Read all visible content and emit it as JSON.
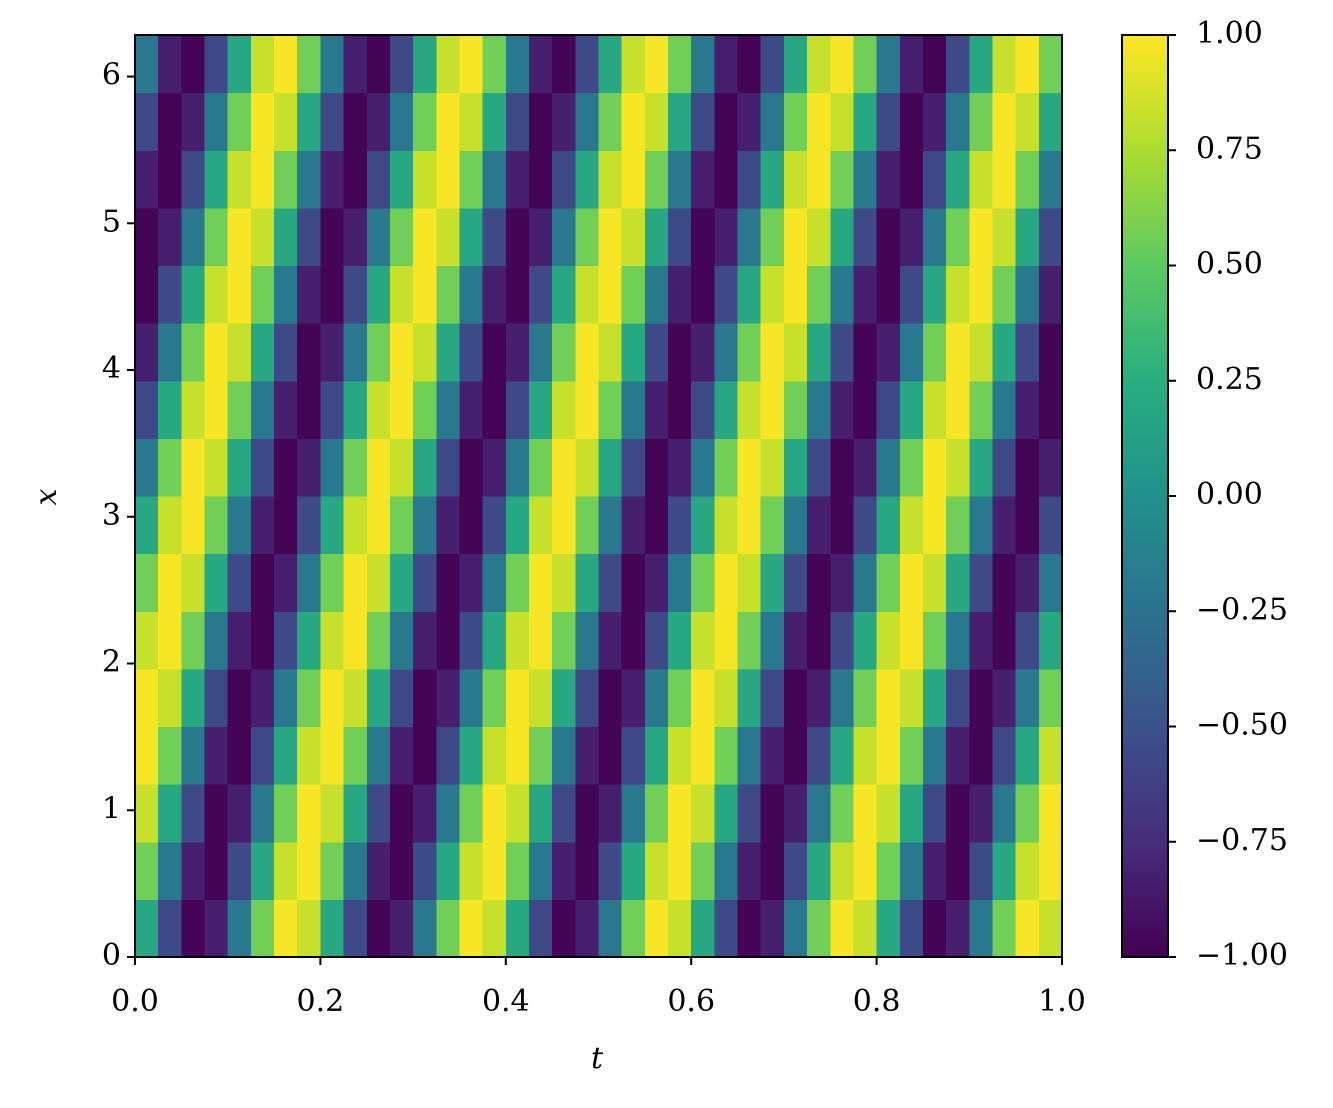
{
  "chart_data": {
    "type": "heatmap",
    "xlabel": "t",
    "ylabel": "x",
    "xlim": [
      0,
      1
    ],
    "ylim": [
      0,
      6.2832
    ],
    "xticks": [
      {
        "value": 0,
        "label": "0.0"
      },
      0.2,
      0.4,
      0.6,
      0.8,
      {
        "value": 1,
        "label": "1.0"
      }
    ],
    "yticks": [
      0,
      1,
      2,
      3,
      4,
      5,
      6
    ],
    "colormap": "viridis",
    "clim": [
      -1,
      1
    ],
    "cticks": [
      {
        "value": -1,
        "label": "−1.00"
      },
      {
        "value": -0.75,
        "label": "−0.75"
      },
      {
        "value": -0.5,
        "label": "−0.50"
      },
      {
        "value": -0.25,
        "label": "−0.25"
      },
      {
        "value": 0,
        "label": "0.00"
      },
      {
        "value": 0.25,
        "label": "0.25"
      },
      {
        "value": 0.5,
        "label": "0.50"
      },
      {
        "value": 0.75,
        "label": "0.75"
      },
      {
        "value": 1,
        "label": "1.00"
      }
    ],
    "z": [
      [
        0.2,
        -0.56,
        -0.98,
        -0.83,
        -0.2,
        0.56,
        0.98,
        0.83,
        0.2,
        -0.56,
        -0.98,
        -0.83,
        -0.2,
        0.56,
        0.98,
        0.83,
        0.2,
        -0.56,
        -0.98,
        -0.83,
        -0.2,
        0.56,
        0.98,
        0.83,
        0.2,
        -0.56,
        -0.98,
        -0.83,
        -0.2,
        0.56,
        0.98,
        0.83,
        0.2,
        -0.56,
        -0.98,
        -0.83,
        -0.2,
        0.56,
        0.98,
        0.83
      ],
      [
        0.56,
        -0.2,
        -0.83,
        -0.98,
        -0.56,
        0.2,
        0.83,
        0.98,
        0.56,
        -0.2,
        -0.83,
        -0.98,
        -0.56,
        0.2,
        0.83,
        0.98,
        0.56,
        -0.2,
        -0.83,
        -0.98,
        -0.56,
        0.2,
        0.83,
        0.98,
        0.56,
        -0.2,
        -0.83,
        -0.98,
        -0.56,
        0.2,
        0.83,
        0.98,
        0.56,
        -0.2,
        -0.83,
        -0.98,
        -0.56,
        0.2,
        0.83,
        0.98
      ],
      [
        0.83,
        0.2,
        -0.56,
        -0.98,
        -0.83,
        -0.2,
        0.56,
        0.98,
        0.83,
        0.2,
        -0.56,
        -0.98,
        -0.83,
        -0.2,
        0.56,
        0.98,
        0.83,
        0.2,
        -0.56,
        -0.98,
        -0.83,
        -0.2,
        0.56,
        0.98,
        0.83,
        0.2,
        -0.56,
        -0.98,
        -0.83,
        -0.2,
        0.56,
        0.98,
        0.83,
        0.2,
        -0.56,
        -0.98,
        -0.83,
        -0.2,
        0.56,
        0.98
      ],
      [
        0.98,
        0.56,
        -0.2,
        -0.83,
        -0.98,
        -0.56,
        0.2,
        0.83,
        0.98,
        0.56,
        -0.2,
        -0.83,
        -0.98,
        -0.56,
        0.2,
        0.83,
        0.98,
        0.56,
        -0.2,
        -0.83,
        -0.98,
        -0.56,
        0.2,
        0.83,
        0.98,
        0.56,
        -0.2,
        -0.83,
        -0.98,
        -0.56,
        0.2,
        0.83,
        0.98,
        0.56,
        -0.2,
        -0.83,
        -0.98,
        -0.56,
        0.2,
        0.83
      ],
      [
        0.98,
        0.83,
        0.2,
        -0.56,
        -0.98,
        -0.83,
        -0.2,
        0.56,
        0.98,
        0.83,
        0.2,
        -0.56,
        -0.98,
        -0.83,
        -0.2,
        0.56,
        0.98,
        0.83,
        0.2,
        -0.56,
        -0.98,
        -0.83,
        -0.2,
        0.56,
        0.98,
        0.83,
        0.2,
        -0.56,
        -0.98,
        -0.83,
        -0.2,
        0.56,
        0.98,
        0.83,
        0.2,
        -0.56,
        -0.98,
        -0.83,
        -0.2,
        0.56
      ],
      [
        0.83,
        0.98,
        0.56,
        -0.2,
        -0.83,
        -0.98,
        -0.56,
        0.2,
        0.83,
        0.98,
        0.56,
        -0.2,
        -0.83,
        -0.98,
        -0.56,
        0.2,
        0.83,
        0.98,
        0.56,
        -0.2,
        -0.83,
        -0.98,
        -0.56,
        0.2,
        0.83,
        0.98,
        0.56,
        -0.2,
        -0.83,
        -0.98,
        -0.56,
        0.2,
        0.83,
        0.98,
        0.56,
        -0.2,
        -0.83,
        -0.98,
        -0.56,
        0.2
      ],
      [
        0.56,
        0.98,
        0.83,
        0.2,
        -0.56,
        -0.98,
        -0.83,
        -0.2,
        0.56,
        0.98,
        0.83,
        0.2,
        -0.56,
        -0.98,
        -0.83,
        -0.2,
        0.56,
        0.98,
        0.83,
        0.2,
        -0.56,
        -0.98,
        -0.83,
        -0.2,
        0.56,
        0.98,
        0.83,
        0.2,
        -0.56,
        -0.98,
        -0.83,
        -0.2,
        0.56,
        0.98,
        0.83,
        0.2,
        -0.56,
        -0.98,
        -0.83,
        -0.2
      ],
      [
        0.2,
        0.83,
        0.98,
        0.56,
        -0.2,
        -0.83,
        -0.98,
        -0.56,
        0.2,
        0.83,
        0.98,
        0.56,
        -0.2,
        -0.83,
        -0.98,
        -0.56,
        0.2,
        0.83,
        0.98,
        0.56,
        -0.2,
        -0.83,
        -0.98,
        -0.56,
        0.2,
        0.83,
        0.98,
        0.56,
        -0.2,
        -0.83,
        -0.98,
        -0.56,
        0.2,
        0.83,
        0.98,
        0.56,
        -0.2,
        -0.83,
        -0.98,
        -0.56
      ],
      [
        -0.2,
        0.56,
        0.98,
        0.83,
        0.2,
        -0.56,
        -0.98,
        -0.83,
        -0.2,
        0.56,
        0.98,
        0.83,
        0.2,
        -0.56,
        -0.98,
        -0.83,
        -0.2,
        0.56,
        0.98,
        0.83,
        0.2,
        -0.56,
        -0.98,
        -0.83,
        -0.2,
        0.56,
        0.98,
        0.83,
        0.2,
        -0.56,
        -0.98,
        -0.83,
        -0.2,
        0.56,
        0.98,
        0.83,
        0.2,
        -0.56,
        -0.98,
        -0.83
      ],
      [
        -0.56,
        0.2,
        0.83,
        0.98,
        0.56,
        -0.2,
        -0.83,
        -0.98,
        -0.56,
        0.2,
        0.83,
        0.98,
        0.56,
        -0.2,
        -0.83,
        -0.98,
        -0.56,
        0.2,
        0.83,
        0.98,
        0.56,
        -0.2,
        -0.83,
        -0.98,
        -0.56,
        0.2,
        0.83,
        0.98,
        0.56,
        -0.2,
        -0.83,
        -0.98,
        -0.56,
        0.2,
        0.83,
        0.98,
        0.56,
        -0.2,
        -0.83,
        -0.98
      ],
      [
        -0.83,
        -0.2,
        0.56,
        0.98,
        0.83,
        0.2,
        -0.56,
        -0.98,
        -0.83,
        -0.2,
        0.56,
        0.98,
        0.83,
        0.2,
        -0.56,
        -0.98,
        -0.83,
        -0.2,
        0.56,
        0.98,
        0.83,
        0.2,
        -0.56,
        -0.98,
        -0.83,
        -0.2,
        0.56,
        0.98,
        0.83,
        0.2,
        -0.56,
        -0.98,
        -0.83,
        -0.2,
        0.56,
        0.98,
        0.83,
        0.2,
        -0.56,
        -0.98
      ],
      [
        -0.98,
        -0.56,
        0.2,
        0.83,
        0.98,
        0.56,
        -0.2,
        -0.83,
        -0.98,
        -0.56,
        0.2,
        0.83,
        0.98,
        0.56,
        -0.2,
        -0.83,
        -0.98,
        -0.56,
        0.2,
        0.83,
        0.98,
        0.56,
        -0.2,
        -0.83,
        -0.98,
        -0.56,
        0.2,
        0.83,
        0.98,
        0.56,
        -0.2,
        -0.83,
        -0.98,
        -0.56,
        0.2,
        0.83,
        0.98,
        0.56,
        -0.2,
        -0.83
      ],
      [
        -0.98,
        -0.83,
        -0.2,
        0.56,
        0.98,
        0.83,
        0.2,
        -0.56,
        -0.98,
        -0.83,
        -0.2,
        0.56,
        0.98,
        0.83,
        0.2,
        -0.56,
        -0.98,
        -0.83,
        -0.2,
        0.56,
        0.98,
        0.83,
        0.2,
        -0.56,
        -0.98,
        -0.83,
        -0.2,
        0.56,
        0.98,
        0.83,
        0.2,
        -0.56,
        -0.98,
        -0.83,
        -0.2,
        0.56,
        0.98,
        0.83,
        0.2,
        -0.56
      ],
      [
        -0.83,
        -0.98,
        -0.56,
        0.2,
        0.83,
        0.98,
        0.56,
        -0.2,
        -0.83,
        -0.98,
        -0.56,
        0.2,
        0.83,
        0.98,
        0.56,
        -0.2,
        -0.83,
        -0.98,
        -0.56,
        0.2,
        0.83,
        0.98,
        0.56,
        -0.2,
        -0.83,
        -0.98,
        -0.56,
        0.2,
        0.83,
        0.98,
        0.56,
        -0.2,
        -0.83,
        -0.98,
        -0.56,
        0.2,
        0.83,
        0.98,
        0.56,
        -0.2
      ],
      [
        -0.56,
        -0.98,
        -0.83,
        -0.2,
        0.56,
        0.98,
        0.83,
        0.2,
        -0.56,
        -0.98,
        -0.83,
        -0.2,
        0.56,
        0.98,
        0.83,
        0.2,
        -0.56,
        -0.98,
        -0.83,
        -0.2,
        0.56,
        0.98,
        0.83,
        0.2,
        -0.56,
        -0.98,
        -0.83,
        -0.2,
        0.56,
        0.98,
        0.83,
        0.2,
        -0.56,
        -0.98,
        -0.83,
        -0.2,
        0.56,
        0.98,
        0.83,
        0.2
      ],
      [
        -0.2,
        -0.83,
        -0.98,
        -0.56,
        0.2,
        0.83,
        0.98,
        0.56,
        -0.2,
        -0.83,
        -0.98,
        -0.56,
        0.2,
        0.83,
        0.98,
        0.56,
        -0.2,
        -0.83,
        -0.98,
        -0.56,
        0.2,
        0.83,
        0.98,
        0.56,
        -0.2,
        -0.83,
        -0.98,
        -0.56,
        0.2,
        0.83,
        0.98,
        0.56,
        -0.2,
        -0.83,
        -0.98,
        -0.56,
        0.2,
        0.83,
        0.98,
        0.56
      ]
    ]
  }
}
